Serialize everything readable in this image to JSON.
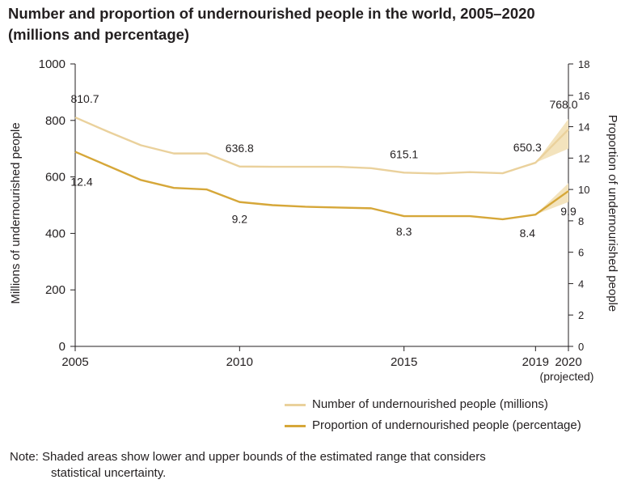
{
  "title_line1": "Number and proportion of undernourished people in the world, 2005–2020",
  "title_line2": "(millions and percentage)",
  "chart_data": {
    "type": "line",
    "x": [
      2005,
      2006,
      2007,
      2008,
      2009,
      2010,
      2011,
      2012,
      2013,
      2014,
      2015,
      2016,
      2017,
      2018,
      2019,
      2020
    ],
    "xticks": [
      {
        "value": 2005,
        "label": "2005"
      },
      {
        "value": 2010,
        "label": "2010"
      },
      {
        "value": 2015,
        "label": "2015"
      },
      {
        "value": 2019,
        "label": "2019"
      },
      {
        "value": 2020,
        "label": "2020"
      }
    ],
    "x_projected_label": "(projected)",
    "xlim": [
      2005,
      2020
    ],
    "ylabel_left": "Millions of undernourished people",
    "ylabel_right": "Proportion of undernourished people",
    "ylim_left": [
      0,
      1000
    ],
    "yticks_left": [
      0,
      200,
      400,
      600,
      800,
      1000
    ],
    "ylim_right": [
      0,
      18
    ],
    "yticks_right": [
      0,
      2,
      4,
      6,
      8,
      10,
      12,
      14,
      16,
      18
    ],
    "series": [
      {
        "name": "Number of undernourished people (millions)",
        "axis": "left",
        "color": "#ead19c",
        "values": [
          810.7,
          760,
          712,
          683,
          683,
          636.8,
          636,
          636,
          636,
          631,
          615.1,
          612,
          617,
          613,
          650.3,
          768.0
        ],
        "band_lower": [
          650.3,
          700
        ],
        "band_upper": [
          650.3,
          805
        ],
        "labels": [
          {
            "index": 0,
            "text": "810.7"
          },
          {
            "index": 5,
            "text": "636.8"
          },
          {
            "index": 10,
            "text": "615.1"
          },
          {
            "index": 14,
            "text": "650.3"
          },
          {
            "index": 15,
            "text": "768.0"
          }
        ]
      },
      {
        "name": "Proportion of undernourished people (percentage)",
        "axis": "right",
        "color": "#d6a739",
        "values": [
          12.4,
          11.5,
          10.6,
          10.1,
          10.0,
          9.2,
          9.0,
          8.9,
          8.85,
          8.8,
          8.3,
          8.3,
          8.3,
          8.1,
          8.4,
          9.9
        ],
        "band_lower": [
          8.4,
          9.2
        ],
        "band_upper": [
          8.4,
          10.4
        ],
        "labels": [
          {
            "index": 0,
            "text": "12.4"
          },
          {
            "index": 5,
            "text": "9.2"
          },
          {
            "index": 10,
            "text": "8.3"
          },
          {
            "index": 14,
            "text": "8.4"
          },
          {
            "index": 15,
            "text": "9.9"
          }
        ]
      }
    ],
    "band_color": "#f3e3bd",
    "grid": false,
    "legend_position": "bottom-right"
  },
  "legend": [
    {
      "label": "Number of undernourished people (millions)",
      "color": "#ead19c"
    },
    {
      "label": "Proportion of undernourished people (percentage)",
      "color": "#d6a739"
    }
  ],
  "note_line1": "Note: Shaded areas show lower and upper bounds of the estimated range that considers",
  "note_line2": "statistical uncertainty."
}
